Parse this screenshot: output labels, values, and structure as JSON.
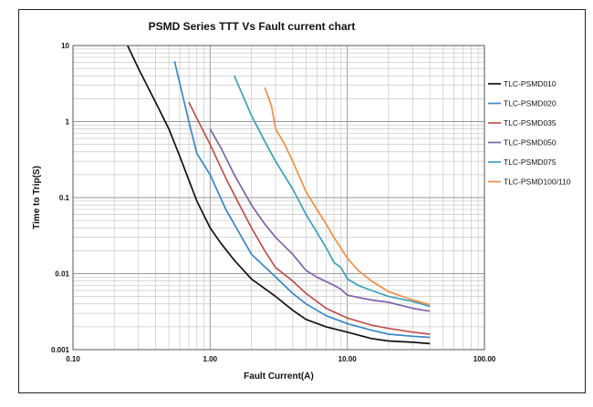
{
  "chart_data": {
    "type": "line",
    "title": "PSMD Series TTT Vs Fault current chart",
    "xlabel": "Fault Current(A)",
    "ylabel": "Time to Trip(S)",
    "xscale": "log",
    "yscale": "log",
    "xlim": [
      0.1,
      100
    ],
    "ylim": [
      0.001,
      10
    ],
    "xtick_labels": [
      "0.10",
      "1.00",
      "10.00",
      "100.00"
    ],
    "ytick_labels": [
      "10",
      "1",
      "0.1",
      "0.01",
      "0.001"
    ],
    "grid": true,
    "legend_position": "right",
    "series": [
      {
        "name": "TLC-PSMD010",
        "color": "#111111",
        "points": [
          [
            0.25,
            10
          ],
          [
            0.3,
            5
          ],
          [
            0.4,
            1.8
          ],
          [
            0.5,
            0.8
          ],
          [
            0.6,
            0.35
          ],
          [
            0.7,
            0.17
          ],
          [
            0.8,
            0.09
          ],
          [
            1.0,
            0.04
          ],
          [
            1.2,
            0.025
          ],
          [
            1.5,
            0.015
          ],
          [
            2.0,
            0.0085
          ],
          [
            3.0,
            0.005
          ],
          [
            4.0,
            0.0033
          ],
          [
            5.0,
            0.0025
          ],
          [
            7.0,
            0.002
          ],
          [
            10.0,
            0.0017
          ],
          [
            15.0,
            0.0014
          ],
          [
            20.0,
            0.0013
          ],
          [
            30.0,
            0.00125
          ],
          [
            40.0,
            0.0012
          ]
        ]
      },
      {
        "name": "TLC-PSMD020",
        "color": "#3a86c8",
        "points": [
          [
            0.55,
            6.2
          ],
          [
            0.6,
            3.2
          ],
          [
            0.7,
            1.0
          ],
          [
            0.8,
            0.38
          ],
          [
            1.0,
            0.2
          ],
          [
            1.3,
            0.07
          ],
          [
            1.7,
            0.03
          ],
          [
            2.0,
            0.018
          ],
          [
            3.0,
            0.009
          ],
          [
            4.0,
            0.0055
          ],
          [
            5.0,
            0.004
          ],
          [
            7.0,
            0.0028
          ],
          [
            10.0,
            0.0022
          ],
          [
            15.0,
            0.0018
          ],
          [
            20.0,
            0.0016
          ],
          [
            30.0,
            0.0015
          ],
          [
            40.0,
            0.00145
          ]
        ]
      },
      {
        "name": "TLC-PSMD035",
        "color": "#c0504d",
        "points": [
          [
            0.7,
            1.8
          ],
          [
            0.8,
            1.1
          ],
          [
            1.0,
            0.5
          ],
          [
            1.3,
            0.18
          ],
          [
            1.7,
            0.07
          ],
          [
            2.0,
            0.04
          ],
          [
            2.5,
            0.02
          ],
          [
            3.0,
            0.012
          ],
          [
            4.0,
            0.008
          ],
          [
            5.0,
            0.0055
          ],
          [
            7.0,
            0.0035
          ],
          [
            10.0,
            0.0026
          ],
          [
            15.0,
            0.0021
          ],
          [
            20.0,
            0.0019
          ],
          [
            30.0,
            0.0017
          ],
          [
            40.0,
            0.0016
          ]
        ]
      },
      {
        "name": "TLC-PSMD050",
        "color": "#7f63a8",
        "points": [
          [
            1.0,
            0.8
          ],
          [
            1.2,
            0.45
          ],
          [
            1.5,
            0.2
          ],
          [
            2.0,
            0.08
          ],
          [
            2.5,
            0.045
          ],
          [
            3.0,
            0.03
          ],
          [
            4.0,
            0.018
          ],
          [
            5.0,
            0.011
          ],
          [
            6.0,
            0.009
          ],
          [
            8.0,
            0.007
          ],
          [
            9.0,
            0.0062
          ],
          [
            10.0,
            0.0052
          ],
          [
            15.0,
            0.0045
          ],
          [
            20.0,
            0.0042
          ],
          [
            30.0,
            0.0035
          ],
          [
            40.0,
            0.0032
          ]
        ]
      },
      {
        "name": "TLC-PSMD075",
        "color": "#3aa2b8",
        "points": [
          [
            1.5,
            4.0
          ],
          [
            2.0,
            1.2
          ],
          [
            2.5,
            0.55
          ],
          [
            3.0,
            0.3
          ],
          [
            4.0,
            0.13
          ],
          [
            5.0,
            0.06
          ],
          [
            6.0,
            0.035
          ],
          [
            7.0,
            0.022
          ],
          [
            8.0,
            0.014
          ],
          [
            9.0,
            0.012
          ],
          [
            10.0,
            0.0085
          ],
          [
            12.0,
            0.007
          ],
          [
            15.0,
            0.006
          ],
          [
            20.0,
            0.005
          ],
          [
            30.0,
            0.0043
          ],
          [
            40.0,
            0.0037
          ]
        ]
      },
      {
        "name": "TLC-PSMD100/110",
        "color": "#f28e43",
        "points": [
          [
            2.5,
            2.8
          ],
          [
            2.8,
            1.6
          ],
          [
            3.0,
            0.8
          ],
          [
            3.5,
            0.5
          ],
          [
            4.0,
            0.3
          ],
          [
            5.0,
            0.12
          ],
          [
            6.0,
            0.07
          ],
          [
            7.0,
            0.045
          ],
          [
            8.0,
            0.03
          ],
          [
            10.0,
            0.016
          ],
          [
            12.0,
            0.011
          ],
          [
            15.0,
            0.008
          ],
          [
            20.0,
            0.0058
          ],
          [
            30.0,
            0.0045
          ],
          [
            40.0,
            0.0039
          ]
        ]
      }
    ]
  }
}
